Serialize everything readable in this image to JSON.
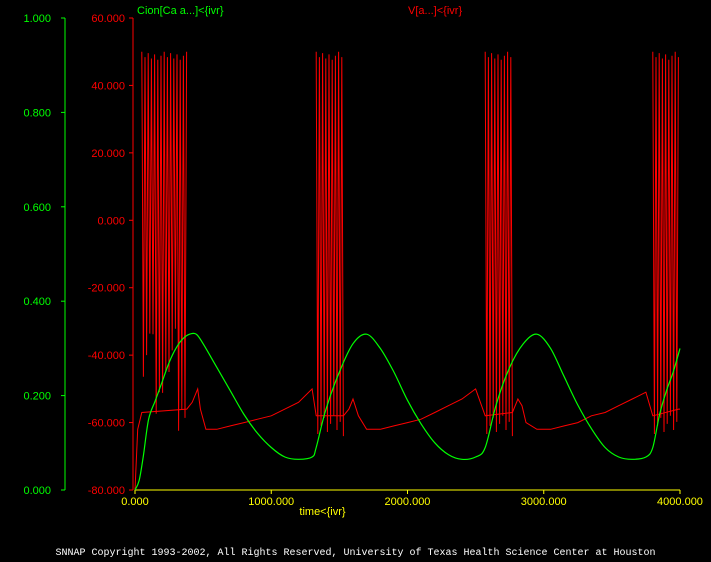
{
  "colors": {
    "background": "#000000",
    "calcium": "#00ff00",
    "voltage": "#ff0000",
    "time_axis": "#ffff00",
    "footer_text": "#ffffff"
  },
  "chart_data": {
    "type": "line",
    "xlabel": "time<{ivr}",
    "xlim": [
      0,
      4000
    ],
    "x_ticks": [
      "0.000",
      "1000.000",
      "2000.000",
      "3000.000",
      "4000.000"
    ],
    "left_axis": {
      "series_label": "Cion[Ca a...]<{ivr}",
      "ylim": [
        0,
        1
      ],
      "ticks": [
        "0.000",
        "0.200",
        "0.400",
        "0.600",
        "0.800",
        "1.000"
      ]
    },
    "right_axis": {
      "series_label": "V[a...]<{ivr}",
      "ylim": [
        -80,
        60
      ],
      "ticks": [
        "-80.000",
        "-60.000",
        "-40.000",
        "-20.000",
        "0.000",
        "20.000",
        "40.000",
        "60.000"
      ]
    },
    "bursts": [
      {
        "start": 50,
        "end": 380
      },
      {
        "start": 1330,
        "end": 1530
      },
      {
        "start": 2570,
        "end": 2770
      },
      {
        "start": 3800,
        "end": 3990
      }
    ],
    "series": [
      {
        "name": "Cion[Ca a...]<{ivr}",
        "axis": "left",
        "x": [
          0,
          30,
          60,
          100,
          150,
          200,
          250,
          300,
          350,
          400,
          450,
          500,
          600,
          700,
          800,
          900,
          1000,
          1100,
          1200,
          1300,
          1330,
          1400,
          1500,
          1600,
          1700,
          1800,
          1900,
          2000,
          2100,
          2200,
          2300,
          2400,
          2500,
          2570,
          2650,
          2750,
          2850,
          2950,
          3050,
          3150,
          3250,
          3350,
          3450,
          3550,
          3650,
          3750,
          3800,
          3850,
          3900,
          3950,
          4000
        ],
        "y": [
          0.0,
          0.02,
          0.07,
          0.15,
          0.19,
          0.23,
          0.27,
          0.3,
          0.32,
          0.33,
          0.33,
          0.31,
          0.26,
          0.21,
          0.16,
          0.12,
          0.09,
          0.07,
          0.065,
          0.07,
          0.09,
          0.17,
          0.25,
          0.31,
          0.33,
          0.3,
          0.25,
          0.19,
          0.14,
          0.1,
          0.075,
          0.065,
          0.07,
          0.09,
          0.18,
          0.26,
          0.31,
          0.33,
          0.3,
          0.24,
          0.18,
          0.13,
          0.09,
          0.07,
          0.065,
          0.07,
          0.09,
          0.16,
          0.21,
          0.25,
          0.3
        ]
      },
      {
        "name": "V[a...]<{ivr}",
        "axis": "right",
        "x": [
          0,
          20,
          50,
          380,
          420,
          460,
          480,
          520,
          600,
          700,
          800,
          900,
          1000,
          1100,
          1200,
          1300,
          1330,
          1530,
          1570,
          1600,
          1640,
          1700,
          1800,
          1900,
          2000,
          2100,
          2200,
          2300,
          2400,
          2500,
          2570,
          2770,
          2810,
          2840,
          2870,
          2950,
          3050,
          3150,
          3250,
          3350,
          3450,
          3550,
          3650,
          3750,
          3800,
          3990,
          4000
        ],
        "y": [
          -80,
          -62,
          -57,
          -56,
          -54,
          -50,
          -56,
          -62,
          -62,
          -61,
          -60,
          -59,
          -58,
          -56,
          -54,
          -50,
          -58,
          -58,
          -56,
          -53,
          -58,
          -62,
          -62,
          -61,
          -60,
          -59,
          -57,
          -55,
          -53,
          -50,
          -58,
          -57,
          -53,
          -55,
          -60,
          -62,
          -62,
          -61,
          -60,
          -58,
          -57,
          -55,
          -53,
          -51,
          -58,
          -56,
          -56
        ]
      }
    ],
    "spikes": {
      "peak": 50,
      "trough": -58
    }
  },
  "footer": {
    "copyright": "SNNAP Copyright 1993-2002, All Rights Reserved, University of Texas Health Science Center at Houston"
  }
}
